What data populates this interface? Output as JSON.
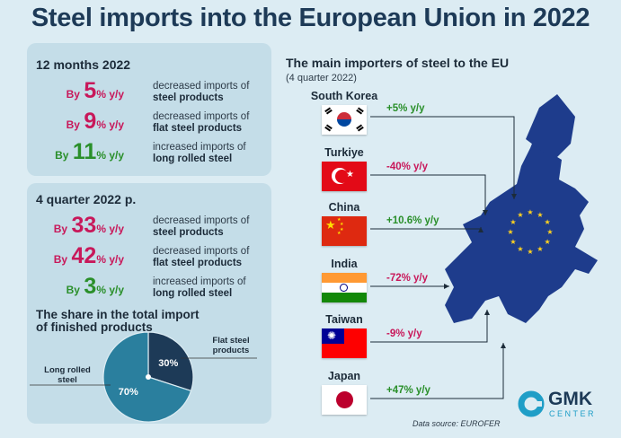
{
  "title": "Steel imports into the European Union in 2022",
  "colors": {
    "accent_red": "#c8185a",
    "accent_green": "#2a8f2a",
    "map_blue": "#1e3c8c",
    "pie_dark": "#1d3a57",
    "pie_light": "#2a7f9e"
  },
  "annual": {
    "heading": "12 months 2022",
    "stats": [
      {
        "by": "By",
        "num": "5",
        "unit": "% y/y",
        "line1": "decreased imports of",
        "line2": "steel products",
        "trend": "down"
      },
      {
        "by": "By",
        "num": "9",
        "unit": "% y/y",
        "line1": "decreased imports of",
        "line2": "flat steel products",
        "trend": "down"
      },
      {
        "by": "By",
        "num": "11",
        "unit": "% y/y",
        "line1": "increased imports of",
        "line2": "long rolled steel",
        "trend": "up"
      }
    ]
  },
  "quarter": {
    "heading": "4 quarter 2022 p.",
    "stats": [
      {
        "by": "By",
        "num": "33",
        "unit": "% y/y",
        "line1": "decreased imports of",
        "line2": "steel products",
        "trend": "down"
      },
      {
        "by": "By",
        "num": "42",
        "unit": "% y/y",
        "line1": "decreased imports of",
        "line2": "flat steel products",
        "trend": "down"
      },
      {
        "by": "By",
        "num": "3",
        "unit": "% y/y",
        "line1": "increased imports of",
        "line2": "long rolled steel",
        "trend": "up"
      }
    ]
  },
  "share": {
    "title_line1": "The share in the total import",
    "title_line2": "of finished products",
    "flat_label_1": "Flat steel",
    "flat_label_2": "products",
    "long_label_1": "Long rolled",
    "long_label_2": "steel"
  },
  "chart_data": {
    "type": "pie",
    "categories": [
      "Flat steel products",
      "Long rolled steel"
    ],
    "values": [
      30,
      70
    ],
    "labels": [
      "30%",
      "70%"
    ]
  },
  "importers": {
    "title": "The main importers of steel to the EU",
    "subtitle": "(4 quarter 2022)",
    "countries": [
      {
        "name": "South Korea",
        "change": "+5% y/y",
        "trend": "up"
      },
      {
        "name": "Turkiye",
        "change": "-40% y/y",
        "trend": "down"
      },
      {
        "name": "China",
        "change": "+10.6% y/y",
        "trend": "up"
      },
      {
        "name": "India",
        "change": "-72% y/y",
        "trend": "down"
      },
      {
        "name": "Taiwan",
        "change": "-9% y/y",
        "trend": "down"
      },
      {
        "name": "Japan",
        "change": "+47% y/y",
        "trend": "up"
      }
    ]
  },
  "source": "Data source: EUROFER",
  "logo": {
    "name": "GMK",
    "sub": "CENTER"
  }
}
